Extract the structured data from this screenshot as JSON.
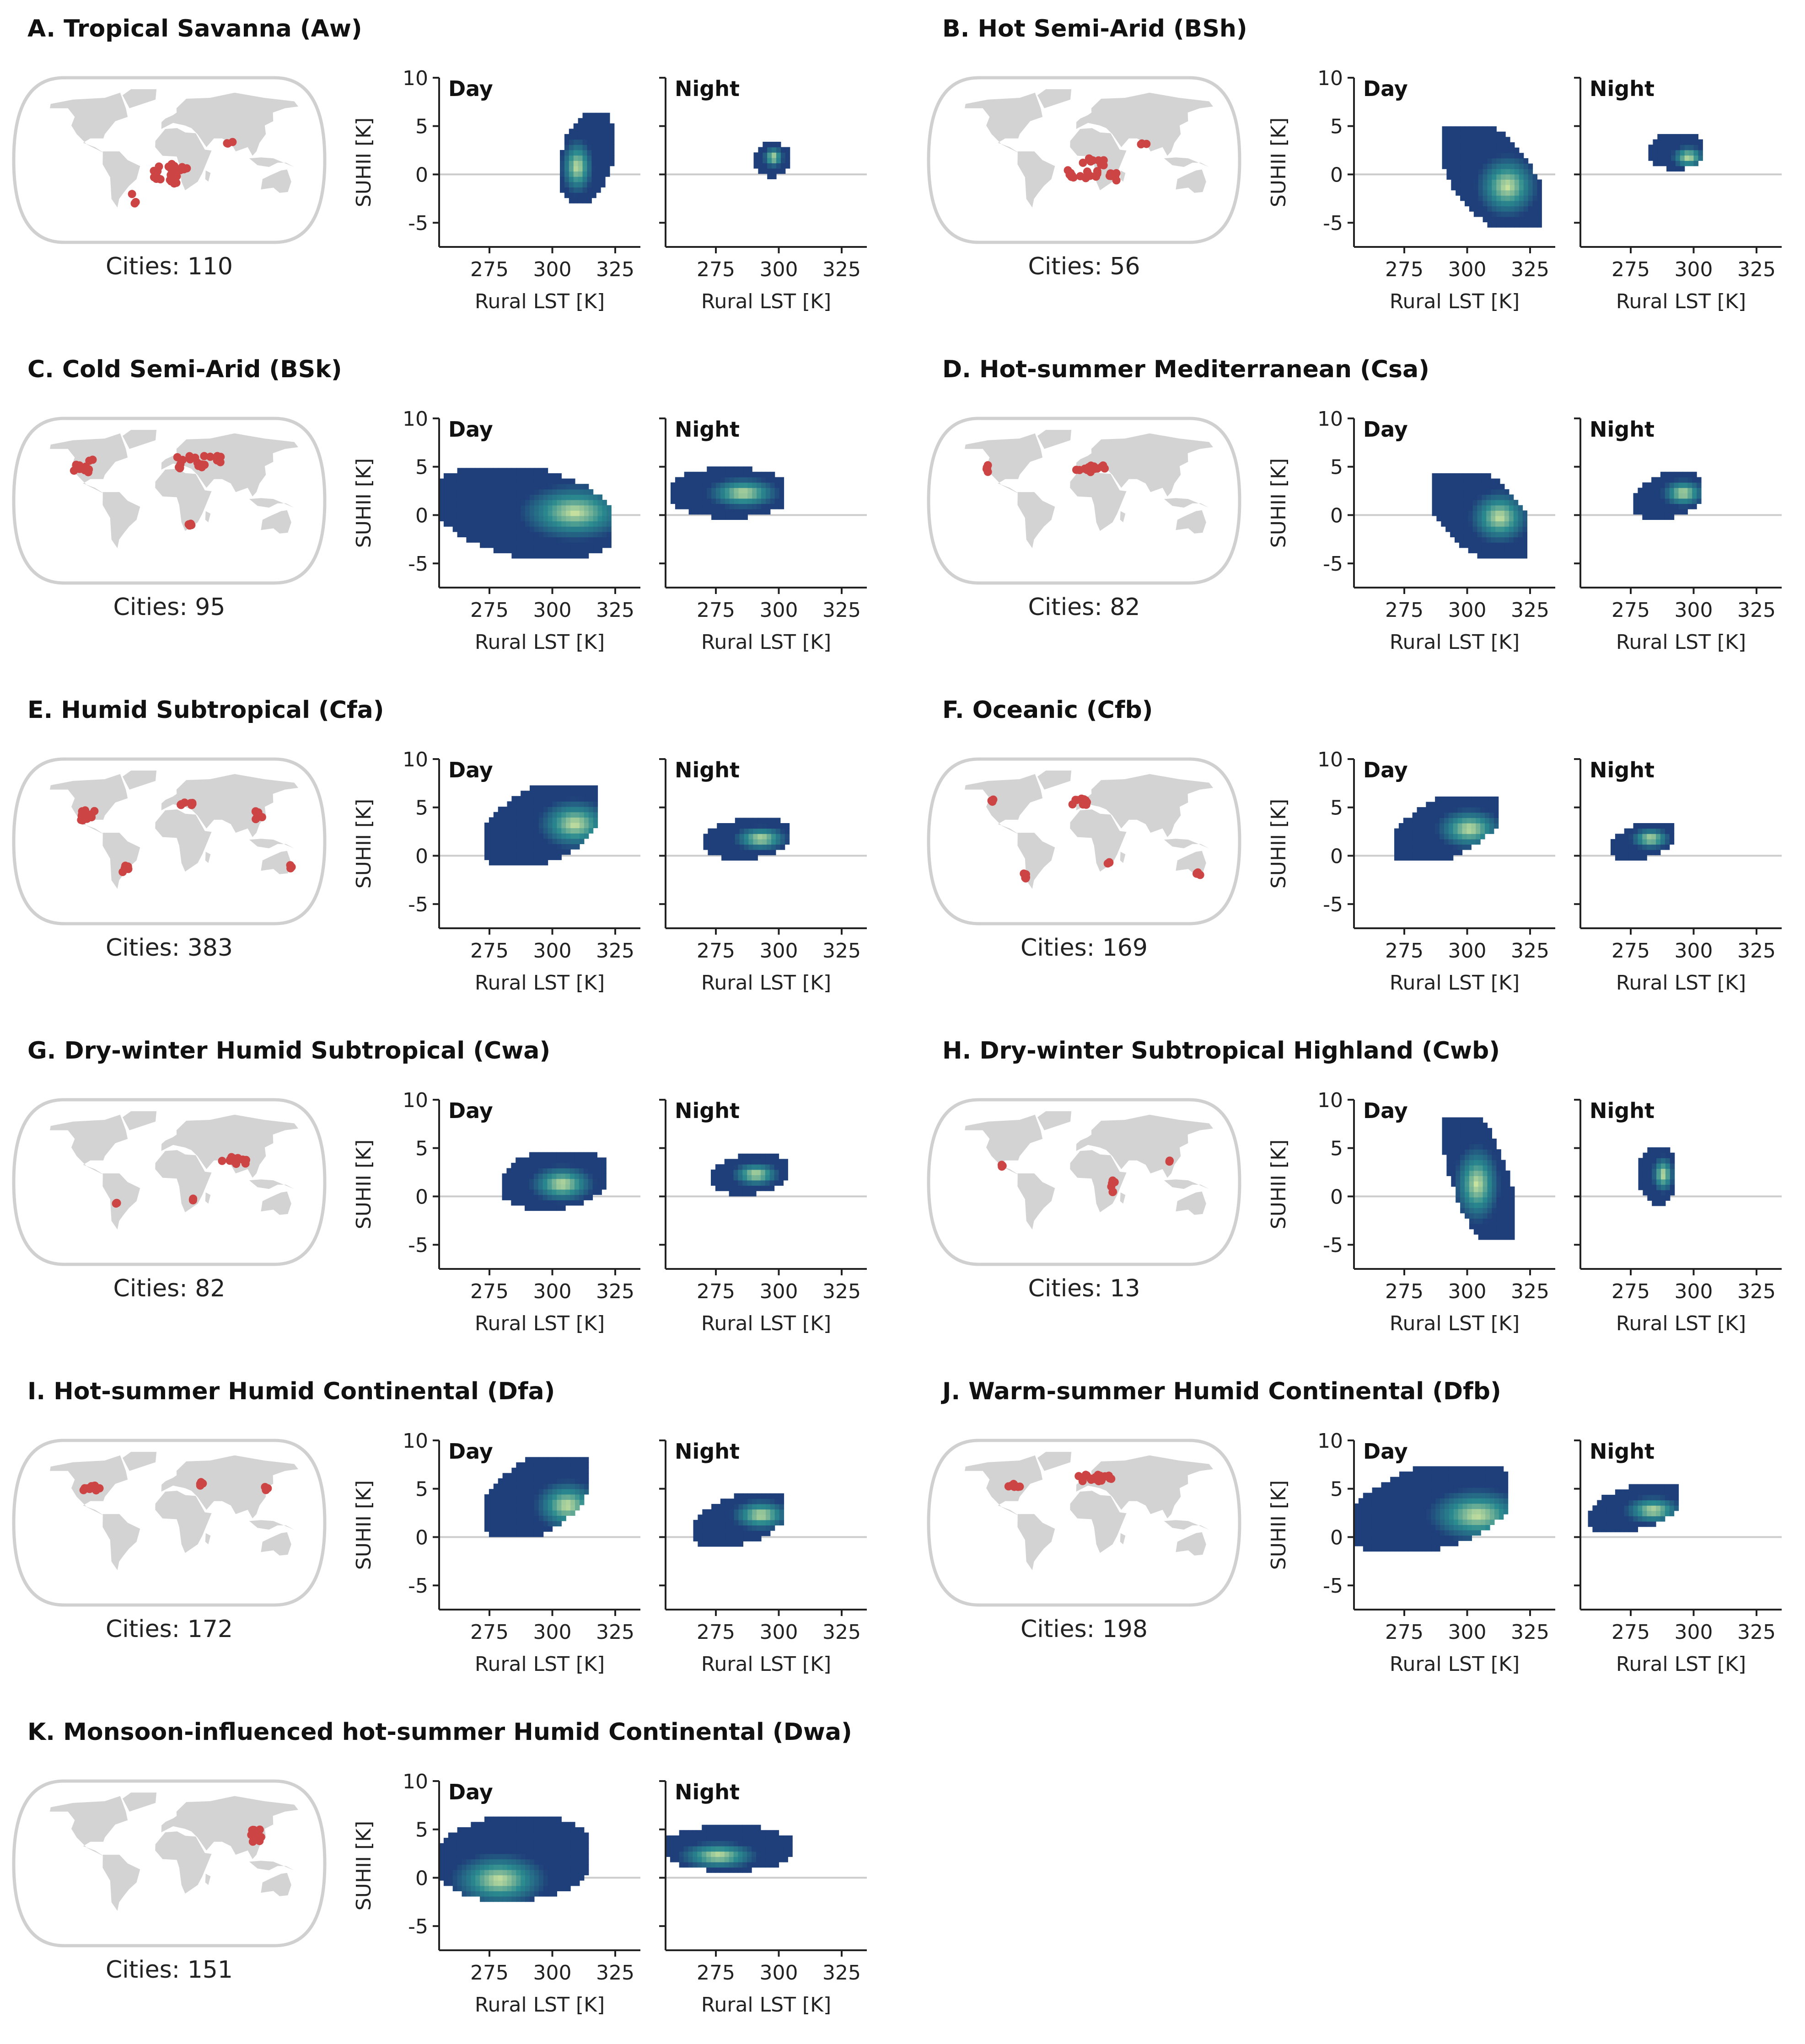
{
  "figure": {
    "day_label": "Day",
    "night_label": "Night",
    "xlabel": "Rural LST [K]",
    "ylabel": "SUHII [K]",
    "colors": {
      "low": "#1f3f7a",
      "mid": "#2a8a8f",
      "high": "#d6e9a0",
      "land": "#d3d3d3",
      "ocean_edge": "#d0d0d0",
      "city": "#cc4444",
      "zero_line": "#cccccc"
    }
  },
  "chart_data": [
    {
      "id": "A",
      "title": "A. Tropical Savanna (Aw)",
      "cities_text": "Cities: 110",
      "type": "heatmap",
      "xlabel": "Rural LST [K]",
      "ylabel": "SUHII [K]",
      "xlim": [
        255,
        335
      ],
      "ylim": [
        -7.5,
        10
      ],
      "xticks": [
        275,
        300,
        325
      ],
      "yticks": [
        -5,
        0,
        5,
        10
      ],
      "city_regions": [
        [
          -15,
          -15,
          10,
          15
        ],
        [
          5,
          -15,
          10,
          35
        ],
        [
          -45,
          -55,
          -5,
          -35
        ],
        [
          75,
          20,
          15,
          -5
        ],
        [
          10,
          -10,
          25,
          -5
        ]
      ],
      "day": {
        "x_range": [
          303,
          323
        ],
        "y_range": [
          -3,
          6
        ],
        "skew": 0.3,
        "peak": [
          309,
          0.5
        ]
      },
      "night": {
        "x_range": [
          290,
          303
        ],
        "y_range": [
          -0.5,
          3
        ],
        "skew": 0,
        "peak": [
          297,
          1.5
        ]
      }
    },
    {
      "id": "B",
      "title": "B. Hot Semi-Arid (BSh)",
      "cities_text": "Cities: 56",
      "type": "heatmap",
      "xlabel": "Rural LST [K]",
      "ylabel": "SUHII [K]",
      "xlim": [
        255,
        335
      ],
      "ylim": [
        -7.5,
        10
      ],
      "xticks": [
        275,
        300,
        325
      ],
      "yticks": [
        -5,
        0,
        5,
        10
      ],
      "city_regions": [
        [
          -15,
          -15,
          10,
          15
        ],
        [
          10,
          -10,
          30,
          25
        ],
        [
          75,
          20,
          15,
          -5
        ],
        [
          35,
          -20,
          10,
          10
        ]
      ],
      "day": {
        "x_range": [
          290,
          328
        ],
        "y_range": [
          -5.5,
          4.5
        ],
        "skew": -0.6,
        "peak": [
          315,
          -1.5
        ]
      },
      "night": {
        "x_range": [
          282,
          303
        ],
        "y_range": [
          0.3,
          4
        ],
        "skew": 0,
        "peak": [
          297,
          1.5
        ]
      }
    },
    {
      "id": "C",
      "title": "C. Cold Semi-Arid (BSk)",
      "cities_text": "Cities: 95",
      "type": "heatmap",
      "xlabel": "Rural LST [K]",
      "ylabel": "SUHII [K]",
      "xlim": [
        255,
        335
      ],
      "ylim": [
        -7.5,
        10
      ],
      "xticks": [
        275,
        300,
        325
      ],
      "yticks": [
        -5,
        0,
        5,
        10
      ],
      "city_regions": [
        [
          -110,
          40,
          20,
          15
        ],
        [
          40,
          45,
          60,
          15
        ],
        [
          25,
          -28,
          6,
          5
        ]
      ],
      "day": {
        "x_range": [
          255,
          322
        ],
        "y_range": [
          -4.5,
          4.5
        ],
        "skew": -0.3,
        "peak": [
          308,
          0
        ]
      },
      "night": {
        "x_range": [
          257,
          302
        ],
        "y_range": [
          -0.5,
          4.5
        ],
        "skew": 0,
        "peak": [
          285,
          2
        ]
      }
    },
    {
      "id": "D",
      "title": "D. Hot-summer Mediterranean (Csa)",
      "cities_text": "Cities: 82",
      "type": "heatmap",
      "xlabel": "Rural LST [K]",
      "ylabel": "SUHII [K]",
      "xlim": [
        255,
        335
      ],
      "ylim": [
        -7.5,
        10
      ],
      "xticks": [
        275,
        300,
        325
      ],
      "yticks": [
        -5,
        0,
        5,
        10
      ],
      "city_regions": [
        [
          -122,
          38,
          4,
          10
        ],
        [
          10,
          37,
          40,
          8
        ]
      ],
      "day": {
        "x_range": [
          286,
          323
        ],
        "y_range": [
          -4.5,
          4
        ],
        "skew": -0.5,
        "peak": [
          312,
          -0.5
        ]
      },
      "night": {
        "x_range": [
          276,
          303
        ],
        "y_range": [
          -0.5,
          4
        ],
        "skew": 0.3,
        "peak": [
          295,
          2
        ]
      }
    },
    {
      "id": "E",
      "title": "E. Humid Subtropical (Cfa)",
      "cities_text": "Cities: 383",
      "type": "heatmap",
      "xlabel": "Rural LST [K]",
      "ylabel": "SUHII [K]",
      "xlim": [
        255,
        335
      ],
      "ylim": [
        -7.5,
        10
      ],
      "xticks": [
        275,
        300,
        325
      ],
      "yticks": [
        -5,
        0,
        5,
        10
      ],
      "city_regions": [
        [
          -100,
          30,
          20,
          12
        ],
        [
          -55,
          -32,
          10,
          8
        ],
        [
          110,
          30,
          15,
          10
        ],
        [
          20,
          44,
          20,
          4
        ],
        [
          150,
          -30,
          4,
          6
        ]
      ],
      "day": {
        "x_range": [
          273,
          318
        ],
        "y_range": [
          -1,
          7
        ],
        "skew": 0.5,
        "peak": [
          308,
          3
        ]
      },
      "night": {
        "x_range": [
          270,
          304
        ],
        "y_range": [
          -0.5,
          3.5
        ],
        "skew": 0.2,
        "peak": [
          292,
          1.5
        ]
      }
    },
    {
      "id": "F",
      "title": "F. Oceanic (Cfb)",
      "cities_text": "Cities: 169",
      "type": "heatmap",
      "xlabel": "Rural LST [K]",
      "ylabel": "SUHII [K]",
      "xlim": [
        255,
        335
      ],
      "ylim": [
        -7.5,
        10
      ],
      "xticks": [
        275,
        300,
        325
      ],
      "yticks": [
        -5,
        0,
        5,
        10
      ],
      "city_regions": [
        [
          -5,
          45,
          20,
          12
        ],
        [
          -75,
          -40,
          6,
          10
        ],
        [
          145,
          -38,
          10,
          4
        ],
        [
          -120,
          47,
          3,
          3
        ],
        [
          30,
          -25,
          3,
          3
        ]
      ],
      "day": {
        "x_range": [
          271,
          312
        ],
        "y_range": [
          -0.5,
          6
        ],
        "skew": 0.6,
        "peak": [
          300,
          2.5
        ]
      },
      "night": {
        "x_range": [
          267,
          292
        ],
        "y_range": [
          -0.5,
          3
        ],
        "skew": 0.4,
        "peak": [
          282,
          1.5
        ]
      }
    },
    {
      "id": "G",
      "title": "G. Dry-winter Humid Subtropical (Cwa)",
      "cities_text": "Cities: 82",
      "type": "heatmap",
      "xlabel": "Rural LST [K]",
      "ylabel": "SUHII [K]",
      "xlim": [
        255,
        335
      ],
      "ylim": [
        -7.5,
        10
      ],
      "xticks": [
        275,
        300,
        325
      ],
      "yticks": [
        -5,
        0,
        5,
        10
      ],
      "city_regions": [
        [
          80,
          25,
          35,
          8
        ],
        [
          -65,
          -25,
          4,
          4
        ],
        [
          30,
          -20,
          4,
          4
        ]
      ],
      "day": {
        "x_range": [
          280,
          320
        ],
        "y_range": [
          -1.5,
          4.5
        ],
        "skew": 0.2,
        "peak": [
          303,
          1
        ]
      },
      "night": {
        "x_range": [
          273,
          303
        ],
        "y_range": [
          0,
          4
        ],
        "skew": 0.2,
        "peak": [
          290,
          2
        ]
      }
    },
    {
      "id": "H",
      "title": "H. Dry-winter Subtropical Highland (Cwb)",
      "cities_text": "Cities: 13",
      "type": "heatmap",
      "xlabel": "Rural LST [K]",
      "ylabel": "SUHII [K]",
      "xlim": [
        255,
        335
      ],
      "ylim": [
        -7.5,
        10
      ],
      "xticks": [
        275,
        300,
        325
      ],
      "yticks": [
        -5,
        0,
        5,
        10
      ],
      "city_regions": [
        [
          -100,
          18,
          5,
          4
        ],
        [
          35,
          -5,
          5,
          15
        ],
        [
          105,
          25,
          5,
          4
        ]
      ],
      "day": {
        "x_range": [
          290,
          318
        ],
        "y_range": [
          -4.5,
          8
        ],
        "skew": -0.8,
        "peak": [
          303,
          1
        ]
      },
      "night": {
        "x_range": [
          278,
          292
        ],
        "y_range": [
          -1,
          5
        ],
        "skew": 0,
        "peak": [
          287,
          2
        ]
      }
    },
    {
      "id": "I",
      "title": "I. Hot-summer Humid Continental (Dfa)",
      "cities_text": "Cities: 172",
      "type": "heatmap",
      "xlabel": "Rural LST [K]",
      "ylabel": "SUHII [K]",
      "xlim": [
        255,
        335
      ],
      "ylim": [
        -7.5,
        10
      ],
      "xticks": [
        275,
        300,
        325
      ],
      "yticks": [
        -5,
        0,
        5,
        10
      ],
      "city_regions": [
        [
          -100,
          40,
          30,
          6
        ],
        [
          40,
          45,
          10,
          4
        ],
        [
          125,
          40,
          6,
          5
        ]
      ],
      "day": {
        "x_range": [
          273,
          313
        ],
        "y_range": [
          0,
          8
        ],
        "skew": 0.5,
        "peak": [
          305,
          3
        ]
      },
      "night": {
        "x_range": [
          266,
          302
        ],
        "y_range": [
          -1,
          4
        ],
        "skew": 0.5,
        "peak": [
          292,
          2
        ]
      }
    },
    {
      "id": "J",
      "title": "J. Warm-summer Humid Continental (Dfb)",
      "cities_text": "Cities: 198",
      "type": "heatmap",
      "xlabel": "Rural LST [K]",
      "ylabel": "SUHII [K]",
      "xlim": [
        255,
        335
      ],
      "ylim": [
        -7.5,
        10
      ],
      "xticks": [
        275,
        300,
        325
      ],
      "yticks": [
        -5,
        0,
        5,
        10
      ],
      "city_regions": [
        [
          -90,
          43,
          15,
          5
        ],
        [
          15,
          52,
          45,
          8
        ]
      ],
      "day": {
        "x_range": [
          255,
          315
        ],
        "y_range": [
          -1.5,
          7
        ],
        "skew": 0.4,
        "peak": [
          303,
          2
        ]
      },
      "night": {
        "x_range": [
          258,
          294
        ],
        "y_range": [
          0.5,
          5
        ],
        "skew": 0.5,
        "peak": [
          283,
          2.5
        ]
      }
    },
    {
      "id": "K",
      "title": "K. Monsoon-influenced hot-summer Humid Continental (Dwa)",
      "cities_text": "Cities: 151",
      "type": "heatmap",
      "xlabel": "Rural LST [K]",
      "ylabel": "SUHII [K]",
      "xlim": [
        255,
        335
      ],
      "ylim": [
        -7.5,
        10
      ],
      "xticks": [
        275,
        300,
        325
      ],
      "yticks": [
        -5,
        0,
        5,
        10
      ],
      "city_regions": [
        [
          110,
          32,
          15,
          15
        ]
      ],
      "day": {
        "x_range": [
          255,
          314
        ],
        "y_range": [
          -2.5,
          6
        ],
        "skew": 0.1,
        "peak": [
          278,
          -0.5
        ]
      },
      "night": {
        "x_range": [
          255,
          304
        ],
        "y_range": [
          0.5,
          5
        ],
        "skew": 0,
        "peak": [
          275,
          2
        ]
      }
    }
  ]
}
